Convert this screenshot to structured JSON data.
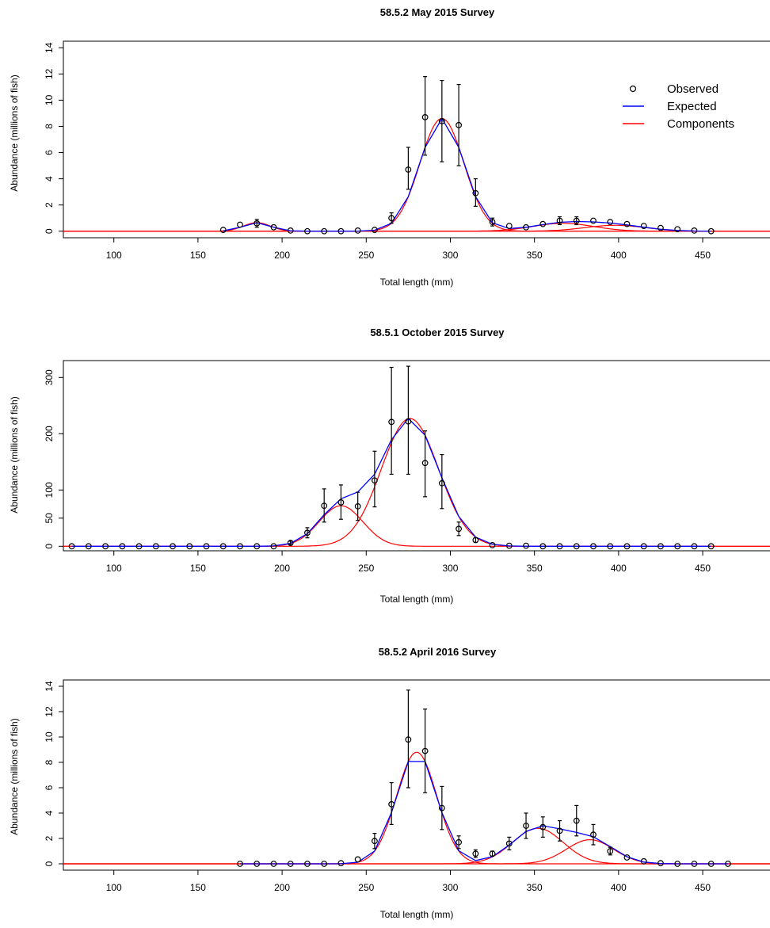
{
  "chart_data": [
    {
      "type": "scatter",
      "title": "58.5.2 May 2015 Survey",
      "xlabel": "Total length (mm)",
      "ylabel": "Abundance (millions of fish)",
      "xlim": [
        70,
        490
      ],
      "ylim": [
        -0.5,
        14.5
      ],
      "xticks": [
        100,
        150,
        200,
        250,
        300,
        350,
        400,
        450
      ],
      "yticks": [
        0,
        2,
        4,
        6,
        8,
        10,
        12,
        14
      ],
      "grid": false,
      "legend": {
        "position": "top-right",
        "entries": [
          {
            "label": "Observed",
            "marker": "circle",
            "color": "#000000"
          },
          {
            "label": "Expected",
            "marker": "line",
            "color": "#0000FF"
          },
          {
            "label": "Components",
            "marker": "line",
            "color": "#FF0000"
          }
        ]
      },
      "observed": [
        {
          "x": 165,
          "y": 0.1
        },
        {
          "x": 175,
          "y": 0.5
        },
        {
          "x": 185,
          "y": 0.6,
          "lo": 0.3,
          "hi": 0.9
        },
        {
          "x": 195,
          "y": 0.3
        },
        {
          "x": 205,
          "y": 0.05
        },
        {
          "x": 215,
          "y": 0.0
        },
        {
          "x": 225,
          "y": 0.0
        },
        {
          "x": 235,
          "y": 0.0
        },
        {
          "x": 245,
          "y": 0.05
        },
        {
          "x": 255,
          "y": 0.1
        },
        {
          "x": 265,
          "y": 1.0,
          "lo": 0.6,
          "hi": 1.4
        },
        {
          "x": 275,
          "y": 4.7,
          "lo": 3.2,
          "hi": 6.4
        },
        {
          "x": 285,
          "y": 8.7,
          "lo": 5.8,
          "hi": 11.8
        },
        {
          "x": 295,
          "y": 8.4,
          "lo": 5.3,
          "hi": 11.5
        },
        {
          "x": 305,
          "y": 8.1,
          "lo": 5.0,
          "hi": 11.2
        },
        {
          "x": 315,
          "y": 2.9,
          "lo": 1.9,
          "hi": 4.0
        },
        {
          "x": 325,
          "y": 0.7,
          "lo": 0.4,
          "hi": 1.0
        },
        {
          "x": 335,
          "y": 0.4
        },
        {
          "x": 345,
          "y": 0.3
        },
        {
          "x": 355,
          "y": 0.55
        },
        {
          "x": 365,
          "y": 0.8,
          "lo": 0.5,
          "hi": 1.1
        },
        {
          "x": 375,
          "y": 0.8,
          "lo": 0.5,
          "hi": 1.1
        },
        {
          "x": 385,
          "y": 0.8
        },
        {
          "x": 395,
          "y": 0.7
        },
        {
          "x": 405,
          "y": 0.55
        },
        {
          "x": 415,
          "y": 0.4
        },
        {
          "x": 425,
          "y": 0.25
        },
        {
          "x": 435,
          "y": 0.15
        },
        {
          "x": 445,
          "y": 0.05
        },
        {
          "x": 455,
          "y": 0.0
        }
      ],
      "components": [
        {
          "mean": 185,
          "sd": 8,
          "amp": 0.65
        },
        {
          "mean": 295,
          "sd": 13,
          "amp": 8.6
        },
        {
          "mean": 367,
          "sd": 18,
          "amp": 0.6
        },
        {
          "mean": 398,
          "sd": 18,
          "amp": 0.45
        }
      ]
    },
    {
      "type": "scatter",
      "title": "58.5.1 October 2015 Survey",
      "xlabel": "Total length (mm)",
      "ylabel": "Abundance (millions of fish)",
      "xlim": [
        70,
        490
      ],
      "ylim": [
        -8,
        330
      ],
      "xticks": [
        100,
        150,
        200,
        250,
        300,
        350,
        400,
        450
      ],
      "yticks": [
        0,
        50,
        100,
        200,
        300
      ],
      "grid": false,
      "observed": [
        {
          "x": 75,
          "y": 0
        },
        {
          "x": 85,
          "y": 0
        },
        {
          "x": 95,
          "y": 0
        },
        {
          "x": 105,
          "y": 0
        },
        {
          "x": 115,
          "y": 0
        },
        {
          "x": 125,
          "y": 0
        },
        {
          "x": 135,
          "y": 0
        },
        {
          "x": 145,
          "y": 0
        },
        {
          "x": 155,
          "y": 0
        },
        {
          "x": 165,
          "y": 0
        },
        {
          "x": 175,
          "y": 0
        },
        {
          "x": 185,
          "y": 0
        },
        {
          "x": 195,
          "y": 0
        },
        {
          "x": 205,
          "y": 6,
          "lo": 3,
          "hi": 9
        },
        {
          "x": 215,
          "y": 24,
          "lo": 15,
          "hi": 33
        },
        {
          "x": 225,
          "y": 72,
          "lo": 43,
          "hi": 102
        },
        {
          "x": 235,
          "y": 78,
          "lo": 48,
          "hi": 109
        },
        {
          "x": 245,
          "y": 71,
          "lo": 46,
          "hi": 96
        },
        {
          "x": 255,
          "y": 117,
          "lo": 70,
          "hi": 169
        },
        {
          "x": 265,
          "y": 221,
          "lo": 128,
          "hi": 318
        },
        {
          "x": 275,
          "y": 222,
          "lo": 128,
          "hi": 320
        },
        {
          "x": 285,
          "y": 148,
          "lo": 88,
          "hi": 205
        },
        {
          "x": 295,
          "y": 112,
          "lo": 67,
          "hi": 163
        },
        {
          "x": 305,
          "y": 31,
          "lo": 19,
          "hi": 43
        },
        {
          "x": 315,
          "y": 11,
          "lo": 7,
          "hi": 15
        },
        {
          "x": 325,
          "y": 2
        },
        {
          "x": 335,
          "y": 1
        },
        {
          "x": 345,
          "y": 1
        },
        {
          "x": 355,
          "y": 0
        },
        {
          "x": 365,
          "y": 0
        },
        {
          "x": 375,
          "y": 0
        },
        {
          "x": 385,
          "y": 0
        },
        {
          "x": 395,
          "y": 0
        },
        {
          "x": 405,
          "y": 0
        },
        {
          "x": 415,
          "y": 0
        },
        {
          "x": 425,
          "y": 0
        },
        {
          "x": 435,
          "y": 0
        },
        {
          "x": 445,
          "y": 0
        },
        {
          "x": 455,
          "y": 0
        }
      ],
      "components": [
        {
          "mean": 235,
          "sd": 13,
          "amp": 72
        },
        {
          "mean": 276,
          "sd": 17,
          "amp": 227
        }
      ]
    },
    {
      "type": "scatter",
      "title": "58.5.2 April 2016 Survey",
      "xlabel": "Total length (mm)",
      "ylabel": "Abundance (millions of fish)",
      "xlim": [
        70,
        490
      ],
      "ylim": [
        -0.5,
        14.5
      ],
      "xticks": [
        100,
        150,
        200,
        250,
        300,
        350,
        400,
        450
      ],
      "yticks": [
        0,
        2,
        4,
        6,
        8,
        10,
        12,
        14
      ],
      "grid": false,
      "observed": [
        {
          "x": 175,
          "y": 0
        },
        {
          "x": 185,
          "y": 0
        },
        {
          "x": 195,
          "y": 0
        },
        {
          "x": 205,
          "y": 0
        },
        {
          "x": 215,
          "y": 0
        },
        {
          "x": 225,
          "y": 0
        },
        {
          "x": 235,
          "y": 0.05
        },
        {
          "x": 245,
          "y": 0.35
        },
        {
          "x": 255,
          "y": 1.8,
          "lo": 1.2,
          "hi": 2.4
        },
        {
          "x": 265,
          "y": 4.7,
          "lo": 3.1,
          "hi": 6.4
        },
        {
          "x": 275,
          "y": 9.8,
          "lo": 6.0,
          "hi": 13.7
        },
        {
          "x": 285,
          "y": 8.9,
          "lo": 5.6,
          "hi": 12.2
        },
        {
          "x": 295,
          "y": 4.4,
          "lo": 2.7,
          "hi": 6.1
        },
        {
          "x": 305,
          "y": 1.7,
          "lo": 1.2,
          "hi": 2.2
        },
        {
          "x": 315,
          "y": 0.8,
          "lo": 0.5,
          "hi": 1.1
        },
        {
          "x": 325,
          "y": 0.8,
          "lo": 0.6,
          "hi": 1.0
        },
        {
          "x": 335,
          "y": 1.6,
          "lo": 1.1,
          "hi": 2.1
        },
        {
          "x": 345,
          "y": 3.0,
          "lo": 2.0,
          "hi": 4.0
        },
        {
          "x": 355,
          "y": 2.9,
          "lo": 2.1,
          "hi": 3.7
        },
        {
          "x": 365,
          "y": 2.6,
          "lo": 1.8,
          "hi": 3.4
        },
        {
          "x": 375,
          "y": 3.4,
          "lo": 2.2,
          "hi": 4.6
        },
        {
          "x": 385,
          "y": 2.3,
          "lo": 1.5,
          "hi": 3.1
        },
        {
          "x": 395,
          "y": 1.0,
          "lo": 0.7,
          "hi": 1.3
        },
        {
          "x": 405,
          "y": 0.5
        },
        {
          "x": 415,
          "y": 0.2
        },
        {
          "x": 425,
          "y": 0.05
        },
        {
          "x": 435,
          "y": 0
        },
        {
          "x": 445,
          "y": 0
        },
        {
          "x": 455,
          "y": 0
        },
        {
          "x": 465,
          "y": 0
        }
      ],
      "components": [
        {
          "mean": 280,
          "sd": 12,
          "amp": 8.8
        },
        {
          "mean": 352,
          "sd": 15,
          "amp": 2.8
        },
        {
          "mean": 383,
          "sd": 14,
          "amp": 1.9
        }
      ]
    }
  ],
  "colors": {
    "observed": "#000000",
    "expected": "#0000FF",
    "components": "#FF0000"
  }
}
